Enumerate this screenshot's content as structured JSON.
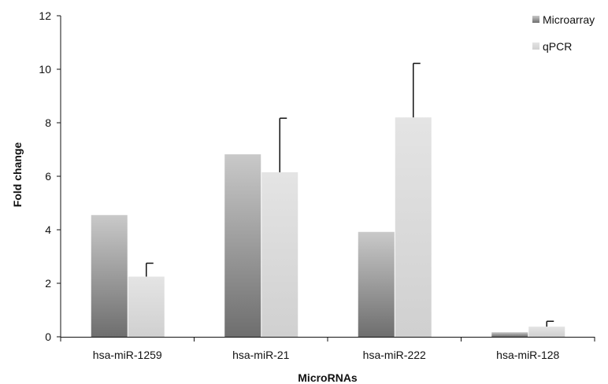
{
  "chart_data": {
    "type": "bar",
    "title": "",
    "xlabel": "MicroRNAs",
    "ylabel": "Fold change",
    "ylim": [
      0,
      12
    ],
    "yticks": [
      "0",
      "2",
      "4",
      "6",
      "8",
      "10",
      "12"
    ],
    "grid": false,
    "legend_position": "top-right",
    "categories": [
      "hsa-miR-1259",
      "hsa-miR-21",
      "hsa-miR-222",
      "hsa-miR-128"
    ],
    "series": [
      {
        "name": "Microarray",
        "values": [
          4.55,
          6.82,
          3.92,
          0.17
        ],
        "error_plus": [
          null,
          null,
          null,
          null
        ],
        "color_dark": "#6e6e6e",
        "color_light": "#c9c9c9"
      },
      {
        "name": "qPCR",
        "values": [
          2.25,
          6.15,
          8.2,
          0.38
        ],
        "error_plus": [
          0.5,
          2.02,
          2.02,
          0.2
        ],
        "color_dark": "#d0d0d0",
        "color_light": "#e4e4e4"
      }
    ]
  }
}
